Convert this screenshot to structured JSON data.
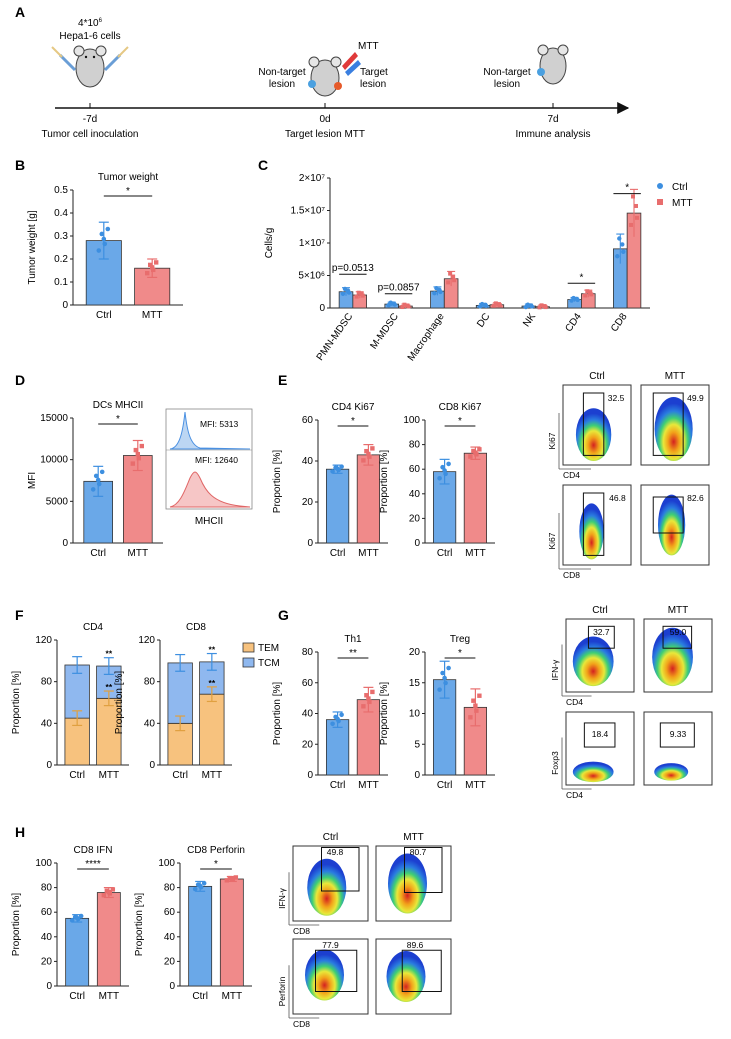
{
  "colors": {
    "ctrl": "#6aa8e8",
    "mtt": "#f08a8a",
    "ctrl_dot": "#3d8fe0",
    "mtt_dot": "#e86d6d",
    "tem": "#f7c27e",
    "tcm": "#8fb8ef"
  },
  "panelA": {
    "label": "A",
    "cells_count": "4*10",
    "cells_exp": "6",
    "cells_line": "Hepa1-6 cells",
    "mtt": "MTT",
    "nontarget1": "Non-target",
    "nontarget1b": "lesion",
    "target": "Target",
    "targetb": "lesion",
    "nontarget2": "Non-target",
    "nontarget2b": "lesion",
    "t1": "-7d",
    "t2": "0d",
    "t3": "7d",
    "s1": "Tumor cell inoculation",
    "s2": "Target lesion MTT",
    "s3": "Immune analysis"
  },
  "chart_data": [
    {
      "id": "B",
      "type": "bar",
      "title": "Tumor weight",
      "ylabel": "Tumor weight [g]",
      "categories": [
        "Ctrl",
        "MTT"
      ],
      "values": [
        0.28,
        0.16
      ],
      "errors": [
        0.08,
        0.04
      ],
      "ylim": [
        0,
        0.5
      ],
      "yticks": [
        "0",
        "0.1",
        "0.2",
        "0.3",
        "0.4",
        "0.5"
      ],
      "sig": "*"
    },
    {
      "id": "C",
      "type": "bar",
      "ylabel": "Cells/g",
      "categories": [
        "PMN-MDSC",
        "M-MDSC",
        "Macrophage",
        "DC",
        "NK",
        "CD4",
        "CD8"
      ],
      "series": [
        {
          "name": "Ctrl",
          "values": [
            2.5,
            0.6,
            2.6,
            0.4,
            0.3,
            1.3,
            9.1
          ]
        },
        {
          "name": "MTT",
          "values": [
            2.0,
            0.3,
            4.5,
            0.5,
            0.2,
            2.2,
            14.6
          ]
        }
      ],
      "yticks": [
        "0",
        "5×10⁶",
        "1×10⁷",
        "1.5×10⁷",
        "2×10⁷"
      ],
      "ylim": [
        0,
        20
      ],
      "annotations": [
        "p=0.0513",
        "p=0.0857",
        "*",
        "*"
      ]
    },
    {
      "id": "D",
      "type": "bar",
      "title": "DCs MHCII",
      "ylabel": "MFI",
      "categories": [
        "Ctrl",
        "MTT"
      ],
      "values": [
        7400,
        10500
      ],
      "errors": [
        1800,
        1800
      ],
      "ylim": [
        0,
        15000
      ],
      "yticks": [
        "0",
        "5000",
        "10000",
        "15000"
      ],
      "sig": "*"
    },
    {
      "id": "E1",
      "type": "bar",
      "title": "CD4 Ki67",
      "ylabel": "Proportion [%]",
      "categories": [
        "Ctrl",
        "MTT"
      ],
      "values": [
        36,
        43
      ],
      "errors": [
        2,
        5
      ],
      "ylim": [
        0,
        60
      ],
      "yticks": [
        "0",
        "20",
        "40",
        "60"
      ],
      "sig": "*"
    },
    {
      "id": "E2",
      "type": "bar",
      "title": "CD8 Ki67",
      "ylabel": "Proportion [%]",
      "categories": [
        "Ctrl",
        "MTT"
      ],
      "values": [
        58,
        73
      ],
      "errors": [
        10,
        5
      ],
      "ylim": [
        0,
        100
      ],
      "yticks": [
        "0",
        "20",
        "40",
        "60",
        "80",
        "100"
      ],
      "sig": "*"
    },
    {
      "id": "F1",
      "type": "bar",
      "title": "CD4",
      "ylabel": "Proportion [%]",
      "categories": [
        "Ctrl",
        "MTT"
      ],
      "series": [
        {
          "name": "TEM",
          "values": [
            45,
            64
          ]
        },
        {
          "name": "TCM",
          "values": [
            51,
            31
          ]
        }
      ],
      "ylim": [
        0,
        120
      ],
      "yticks": [
        "0",
        "40",
        "80",
        "120"
      ]
    },
    {
      "id": "F2",
      "type": "bar",
      "title": "CD8",
      "ylabel": "Proportion [%]",
      "categories": [
        "Ctrl",
        "MTT"
      ],
      "series": [
        {
          "name": "TEM",
          "values": [
            40,
            68
          ]
        },
        {
          "name": "TCM",
          "values": [
            58,
            31
          ]
        }
      ],
      "ylim": [
        0,
        120
      ],
      "yticks": [
        "0",
        "40",
        "80",
        "120"
      ]
    },
    {
      "id": "G1",
      "type": "bar",
      "title": "Th1",
      "ylabel": "Proportion [%]",
      "categories": [
        "Ctrl",
        "MTT"
      ],
      "values": [
        36,
        49
      ],
      "errors": [
        5,
        8
      ],
      "ylim": [
        0,
        80
      ],
      "yticks": [
        "0",
        "20",
        "40",
        "60",
        "80"
      ],
      "sig": "**"
    },
    {
      "id": "G2",
      "type": "bar",
      "title": "Treg",
      "ylabel": "Proportion [%]",
      "categories": [
        "Ctrl",
        "MTT"
      ],
      "values": [
        15.5,
        11
      ],
      "errors": [
        3,
        3
      ],
      "ylim": [
        0,
        20
      ],
      "yticks": [
        "0",
        "5",
        "10",
        "15",
        "20"
      ],
      "sig": "*"
    },
    {
      "id": "H1",
      "type": "bar",
      "title": "CD8 IFN",
      "ylabel": "Proportion [%]",
      "categories": [
        "Ctrl",
        "MTT"
      ],
      "values": [
        55,
        76
      ],
      "errors": [
        3,
        4
      ],
      "ylim": [
        0,
        100
      ],
      "yticks": [
        "0",
        "20",
        "40",
        "60",
        "80",
        "100"
      ],
      "sig": "****"
    },
    {
      "id": "H2",
      "type": "bar",
      "title": "CD8 Perforin",
      "ylabel": "Proportion [%]",
      "categories": [
        "Ctrl",
        "MTT"
      ],
      "values": [
        81,
        87
      ],
      "errors": [
        4,
        2
      ],
      "ylim": [
        0,
        100
      ],
      "yticks": [
        "0",
        "20",
        "40",
        "60",
        "80",
        "100"
      ],
      "sig": "*"
    }
  ],
  "legendC": {
    "ctrl": "Ctrl",
    "mtt": "MTT"
  },
  "legendF": {
    "tem": "TEM",
    "tcm": "TCM"
  },
  "panel_labels": {
    "B": "B",
    "C": "C",
    "D": "D",
    "E": "E",
    "F": "F",
    "G": "G",
    "H": "H"
  },
  "histD": {
    "mfi1": "MFI: 5313",
    "mfi2": "MFI: 12640",
    "xlabel": "MHCII"
  },
  "flowE": {
    "col1": "Ctrl",
    "col2": "MTT",
    "v1": "32.5",
    "v2": "49.9",
    "v3": "46.8",
    "v4": "82.6",
    "y1": "Ki67",
    "x1": "CD4",
    "y2": "Ki67",
    "x2": "CD8"
  },
  "flowG": {
    "col1": "Ctrl",
    "col2": "MTT",
    "v1": "32.7",
    "v2": "59.0",
    "v3": "18.4",
    "v4": "9.33",
    "y1": "IFN-γ",
    "x1": "CD4",
    "y2": "Foxp3",
    "x2": "CD4"
  },
  "flowH": {
    "col1": "Ctrl",
    "col2": "MTT",
    "v1": "49.8",
    "v2": "80.7",
    "v3": "77.9",
    "v4": "89.6",
    "y1": "IFN-γ",
    "x1": "CD8",
    "y2": "Perforin",
    "x2": "CD8"
  },
  "sigF": [
    "**",
    "**",
    "**",
    "**"
  ]
}
